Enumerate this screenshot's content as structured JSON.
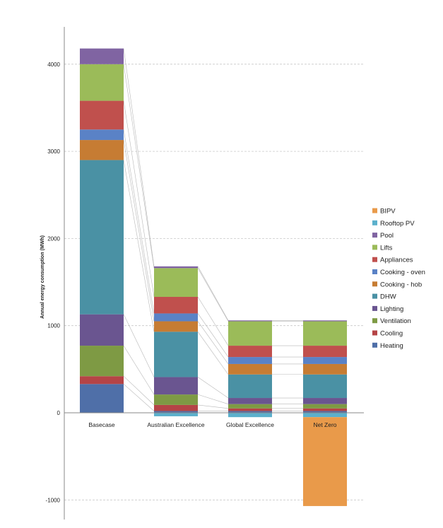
{
  "chart_data": {
    "type": "bar",
    "stacked": true,
    "title": "",
    "xlabel": "",
    "ylabel": "Annual energy consumption (MWh)",
    "ylim": [
      -1100,
      4400
    ],
    "yticks": [
      -1000,
      0,
      1000,
      2000,
      3000,
      4000
    ],
    "grid": true,
    "legend_position": "right",
    "categories": [
      "Basecase",
      "Australian Excellence",
      "Global Excellence",
      "Net Zero"
    ],
    "series": [
      {
        "name": "Heating",
        "color": "#4f6fa8",
        "values": [
          330,
          20,
          20,
          20
        ]
      },
      {
        "name": "Cooling",
        "color": "#b54446",
        "values": [
          90,
          70,
          30,
          30
        ]
      },
      {
        "name": "Ventilation",
        "color": "#7e9a44",
        "values": [
          350,
          120,
          50,
          50
        ]
      },
      {
        "name": "Lighting",
        "color": "#6a5590",
        "values": [
          360,
          200,
          70,
          70
        ]
      },
      {
        "name": "DHW",
        "color": "#4a91a4",
        "values": [
          1770,
          520,
          270,
          270
        ]
      },
      {
        "name": "Cooking - hob",
        "color": "#c67c33",
        "values": [
          230,
          120,
          120,
          120
        ]
      },
      {
        "name": "Cooking - oven",
        "color": "#5a82c6",
        "values": [
          120,
          90,
          80,
          80
        ]
      },
      {
        "name": "Appliances",
        "color": "#c0504d",
        "values": [
          330,
          190,
          130,
          130
        ]
      },
      {
        "name": "Lifts",
        "color": "#9bbb59",
        "values": [
          420,
          330,
          280,
          280
        ]
      },
      {
        "name": "Pool",
        "color": "#8064a2",
        "values": [
          180,
          20,
          10,
          10
        ]
      },
      {
        "name": "Rooftop PV",
        "color": "#5bb0cc",
        "values": [
          0,
          -40,
          -50,
          -50
        ]
      },
      {
        "name": "BIPV",
        "color": "#e99a4a",
        "values": [
          0,
          0,
          0,
          -1020
        ]
      }
    ]
  }
}
